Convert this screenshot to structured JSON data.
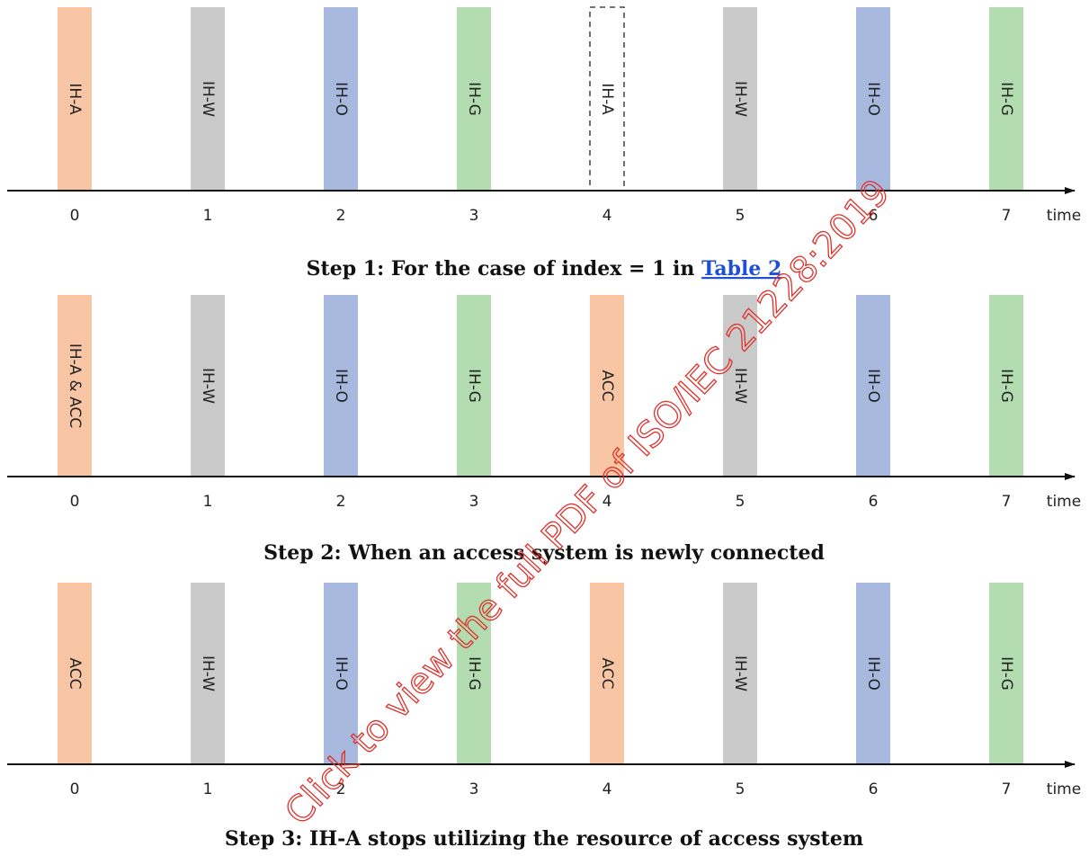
{
  "ticks": [
    "0",
    "1",
    "2",
    "3",
    "4",
    "5",
    "6",
    "7"
  ],
  "axis_label": "time",
  "panels": [
    {
      "slots": [
        {
          "label": "IH-A",
          "color": "#f8c6a4"
        },
        {
          "label": "IH-W",
          "color": "#cacaca"
        },
        {
          "label": "IH-O",
          "color": "#a8b9df"
        },
        {
          "label": "IH-G",
          "color": "#b4dcb1"
        },
        {
          "label": "IH-A",
          "color": "#ffffff",
          "outline": "dashed"
        },
        {
          "label": "IH-W",
          "color": "#cacaca"
        },
        {
          "label": "IH-O",
          "color": "#a8b9df"
        },
        {
          "label": "IH-G",
          "color": "#b4dcb1"
        }
      ],
      "caption": "Step 1: For the case of index = 1 in",
      "caption_link": "Table 2"
    },
    {
      "slots": [
        {
          "label": "IH-A & ACC",
          "color": "#f8c6a4"
        },
        {
          "label": "IH-W",
          "color": "#cacaca"
        },
        {
          "label": "IH-O",
          "color": "#a8b9df"
        },
        {
          "label": "IH-G",
          "color": "#b4dcb1"
        },
        {
          "label": "ACC",
          "color": "#f8c6a4"
        },
        {
          "label": "IH-W",
          "color": "#cacaca"
        },
        {
          "label": "IH-O",
          "color": "#a8b9df"
        },
        {
          "label": "IH-G",
          "color": "#b4dcb1"
        }
      ],
      "caption": "Step 2: When an access system is newly connected"
    },
    {
      "slots": [
        {
          "label": "ACC",
          "color": "#f8c6a4"
        },
        {
          "label": "IH-W",
          "color": "#cacaca"
        },
        {
          "label": "IH-O",
          "color": "#a8b9df"
        },
        {
          "label": "IH-G",
          "color": "#b4dcb1"
        },
        {
          "label": "ACC",
          "color": "#f8c6a4"
        },
        {
          "label": "IH-W",
          "color": "#cacaca"
        },
        {
          "label": "IH-O",
          "color": "#a8b9df"
        },
        {
          "label": "IH-G",
          "color": "#b4dcb1"
        }
      ],
      "caption": "Step 3: IH-A stops utilizing the resource of access system"
    }
  ],
  "watermark": "Click to view the full PDF of ISO/IEC 21228:2019"
}
